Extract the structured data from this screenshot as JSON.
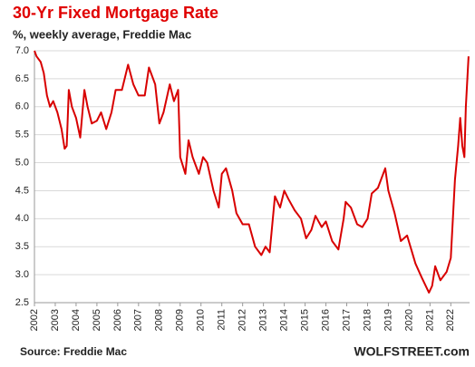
{
  "chart_data": {
    "type": "line",
    "title": "30-Yr Fixed Mortgage Rate",
    "subtitle": "%, weekly average, Freddie Mac",
    "source": "Source: Freddie Mac",
    "brand": "WOLFSTREET.com",
    "x": [
      2002.0,
      2002.1,
      2002.3,
      2002.45,
      2002.6,
      2002.75,
      2002.9,
      2003.1,
      2003.3,
      2003.45,
      2003.55,
      2003.65,
      2003.8,
      2004.0,
      2004.2,
      2004.4,
      2004.55,
      2004.75,
      2005.0,
      2005.2,
      2005.45,
      2005.7,
      2005.9,
      2006.2,
      2006.5,
      2006.75,
      2007.0,
      2007.3,
      2007.5,
      2007.8,
      2008.0,
      2008.2,
      2008.5,
      2008.7,
      2008.9,
      2009.0,
      2009.25,
      2009.4,
      2009.6,
      2009.9,
      2010.1,
      2010.3,
      2010.6,
      2010.85,
      2011.0,
      2011.2,
      2011.5,
      2011.7,
      2012.0,
      2012.3,
      2012.6,
      2012.9,
      2013.1,
      2013.3,
      2013.55,
      2013.8,
      2014.0,
      2014.2,
      2014.5,
      2014.8,
      2015.05,
      2015.3,
      2015.5,
      2015.8,
      2016.0,
      2016.3,
      2016.6,
      2016.85,
      2016.95,
      2017.2,
      2017.5,
      2017.75,
      2018.0,
      2018.2,
      2018.5,
      2018.85,
      2019.0,
      2019.3,
      2019.6,
      2019.9,
      2020.1,
      2020.3,
      2020.6,
      2020.95,
      2021.1,
      2021.25,
      2021.5,
      2021.8,
      2022.0,
      2022.2,
      2022.35,
      2022.45,
      2022.55,
      2022.65,
      2022.72,
      2022.85
    ],
    "series": [
      {
        "name": "30-Yr Fixed Mortgage Rate",
        "color": "#d80000",
        "values": [
          7.0,
          6.9,
          6.8,
          6.6,
          6.2,
          6.0,
          6.1,
          5.9,
          5.6,
          5.25,
          5.3,
          6.3,
          6.0,
          5.8,
          5.45,
          6.3,
          6.0,
          5.7,
          5.75,
          5.9,
          5.6,
          5.9,
          6.3,
          6.3,
          6.75,
          6.4,
          6.2,
          6.2,
          6.7,
          6.4,
          5.7,
          5.9,
          6.4,
          6.1,
          6.3,
          5.1,
          4.8,
          5.4,
          5.1,
          4.8,
          5.1,
          5.0,
          4.5,
          4.2,
          4.8,
          4.9,
          4.5,
          4.1,
          3.9,
          3.9,
          3.5,
          3.35,
          3.5,
          3.4,
          4.4,
          4.2,
          4.5,
          4.35,
          4.15,
          4.0,
          3.65,
          3.8,
          4.05,
          3.85,
          3.95,
          3.6,
          3.45,
          4.0,
          4.3,
          4.2,
          3.9,
          3.85,
          4.0,
          4.45,
          4.55,
          4.9,
          4.5,
          4.1,
          3.6,
          3.7,
          3.45,
          3.2,
          2.95,
          2.68,
          2.8,
          3.15,
          2.9,
          3.05,
          3.3,
          4.7,
          5.3,
          5.8,
          5.3,
          5.1,
          6.0,
          6.9
        ]
      }
    ],
    "xlim": [
      2002,
      2022.9
    ],
    "xticks": [
      2002,
      2003,
      2004,
      2005,
      2006,
      2007,
      2008,
      2009,
      2010,
      2011,
      2012,
      2013,
      2014,
      2015,
      2016,
      2017,
      2018,
      2019,
      2020,
      2021,
      2022
    ],
    "ylim": [
      2.5,
      7.0
    ],
    "yticks": [
      {
        "value": 2.5,
        "label": "2.5"
      },
      {
        "value": 3,
        "label": "3.0"
      },
      3.5,
      {
        "value": 4,
        "label": "4.0"
      },
      4.5,
      {
        "value": 5,
        "label": "5.0"
      },
      5.5,
      {
        "value": 6,
        "label": "6.0"
      },
      6.5,
      {
        "value": 7,
        "label": "7.0"
      }
    ],
    "grid": true
  }
}
